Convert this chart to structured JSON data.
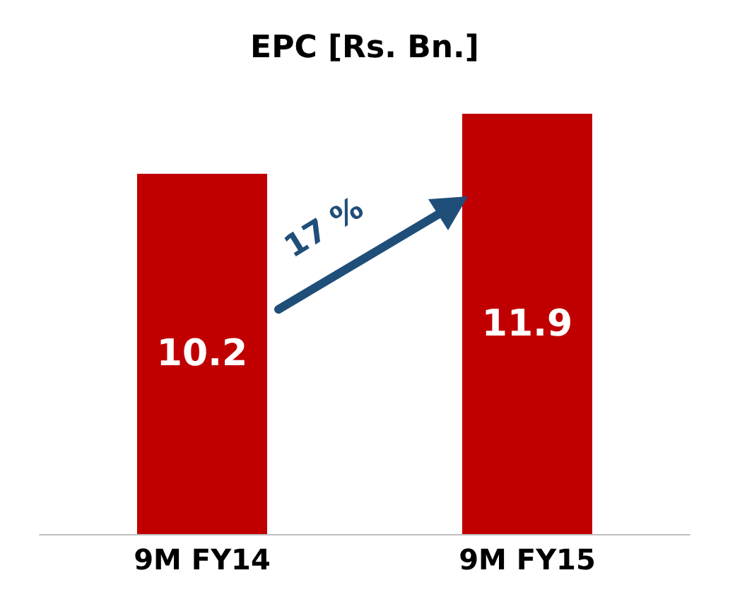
{
  "chart_data": {
    "type": "bar",
    "title": "EPC [Rs. Bn.]",
    "categories": [
      "9M FY14",
      "9M FY15"
    ],
    "values": [
      10.2,
      11.9
    ],
    "color": "#c00000",
    "data_labels": true,
    "annotations": [
      "17 %"
    ]
  }
}
